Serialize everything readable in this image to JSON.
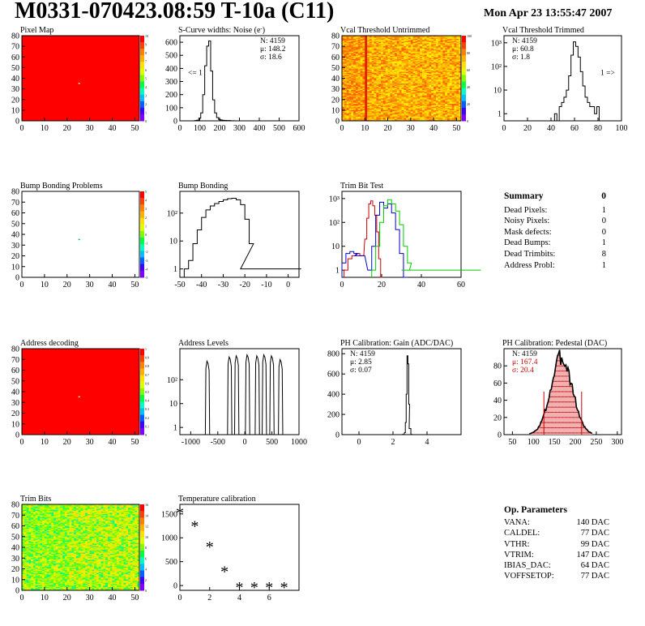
{
  "header": {
    "title": "M0331-070423.08:59 T-10a (C11)",
    "date": "Mon Apr 23 13:55:47 2007"
  },
  "summary": {
    "title": "Summary",
    "total": "0",
    "rows": [
      {
        "label": "Dead Pixels:",
        "value": "1"
      },
      {
        "label": "Noisy Pixels:",
        "value": "0"
      },
      {
        "label": "Mask defects:",
        "value": "0"
      },
      {
        "label": "Dead Bumps:",
        "value": "1"
      },
      {
        "label": "Dead Trimbits:",
        "value": "8"
      },
      {
        "label": "Address Probl:",
        "value": "1"
      }
    ]
  },
  "op_params": {
    "title": "Op. Parameters",
    "rows": [
      {
        "label": "VANA:",
        "value": "140 DAC"
      },
      {
        "label": "CALDEL:",
        "value": "77 DAC"
      },
      {
        "label": "VTHR:",
        "value": "99 DAC"
      },
      {
        "label": "VTRIM:",
        "value": "147 DAC"
      },
      {
        "label": "IBIAS_DAC:",
        "value": "64 DAC"
      },
      {
        "label": "VOFFSETOP:",
        "value": "77 DAC"
      }
    ]
  },
  "colors": {
    "map_red": "#ff0000",
    "map_pixel": "#ffff66",
    "trim_red": "#cc0000",
    "trim_green": "#00cc00",
    "trim_blue": "#0000cc",
    "pedestal_stats": "#cc0000",
    "pedestal_fill": "#f3b0b0"
  },
  "chart_data": [
    {
      "id": "pixel_map",
      "type": "heatmap",
      "title": "Pixel Map",
      "xlim": [
        0,
        52
      ],
      "ylim": [
        0,
        80
      ],
      "xticks": [
        0,
        10,
        20,
        30,
        40,
        50
      ],
      "yticks": [
        0,
        10,
        20,
        30,
        40,
        50,
        60,
        70,
        80
      ],
      "fill": "uniform-max",
      "zlim": [
        0,
        10
      ],
      "zticks": [
        "10",
        "9",
        "8",
        "7",
        "6",
        "5",
        "4",
        "3",
        "2",
        "1",
        "0"
      ],
      "defects": [
        {
          "x": 25,
          "y": 35,
          "value": "low"
        }
      ]
    },
    {
      "id": "scurve_widths",
      "type": "histogram",
      "title": "S-Curve widths: Noise (e",
      "title_sup": "-",
      "title_end": ")",
      "xlim": [
        0,
        600
      ],
      "ylim": [
        0,
        650
      ],
      "xticks": [
        0,
        100,
        200,
        300,
        400,
        500,
        600
      ],
      "yticks": [
        0,
        100,
        200,
        300,
        400,
        500,
        600
      ],
      "stats": [
        "N: 4159",
        "μ: 148.2",
        "σ: 18.6"
      ],
      "annotation": "<= 1",
      "x": [
        70,
        80,
        90,
        100,
        110,
        120,
        130,
        140,
        150,
        160,
        170,
        180,
        190,
        200,
        210,
        220,
        230,
        240,
        250,
        260,
        270,
        280
      ],
      "values": [
        0,
        2,
        5,
        20,
        60,
        200,
        420,
        570,
        610,
        380,
        160,
        60,
        25,
        10,
        6,
        4,
        3,
        2,
        2,
        1,
        1,
        0
      ]
    },
    {
      "id": "vcal_untrimmed",
      "type": "heatmap",
      "title": "Vcal Threshold Untrimmed",
      "xlim": [
        0,
        52
      ],
      "ylim": [
        0,
        80
      ],
      "xticks": [
        0,
        10,
        20,
        30,
        40,
        50
      ],
      "yticks": [
        0,
        10,
        20,
        30,
        40,
        50,
        60,
        70,
        80
      ],
      "fill": "noisy-high",
      "zlim": [
        0,
        100
      ],
      "zticks": [
        "100",
        "80",
        "60",
        "40",
        "20",
        "0"
      ],
      "hot_columns": [
        10
      ]
    },
    {
      "id": "vcal_trimmed",
      "type": "histogram",
      "title": "Vcal Threshold Trimmed",
      "log_y": true,
      "xlim": [
        0,
        100
      ],
      "ylim": [
        0.5,
        2000
      ],
      "xticks": [
        0,
        20,
        40,
        60,
        80,
        100
      ],
      "yticks": [
        1,
        10,
        100,
        1000
      ],
      "ytick_labels": [
        "1",
        "10",
        "10²",
        "10³"
      ],
      "stats": [
        "N: 4159",
        "μ: 60.8",
        "σ:  1.8"
      ],
      "annotation": "1 =>",
      "x": [
        44,
        46,
        48,
        50,
        52,
        54,
        56,
        58,
        60,
        62,
        64,
        66,
        68,
        70,
        72,
        74,
        76,
        78,
        80,
        82
      ],
      "values": [
        1,
        0,
        2,
        3,
        5,
        10,
        40,
        300,
        1100,
        700,
        250,
        60,
        15,
        5,
        3,
        2,
        2,
        1,
        2,
        0
      ]
    },
    {
      "id": "bump_bonding_problems",
      "type": "heatmap",
      "title": "Bump Bonding Problems",
      "xlim": [
        0,
        52
      ],
      "ylim": [
        0,
        80
      ],
      "xticks": [
        0,
        10,
        20,
        30,
        40,
        50
      ],
      "yticks": [
        0,
        10,
        20,
        30,
        40,
        50,
        60,
        70,
        80
      ],
      "fill": "empty",
      "zlim": [
        -5,
        5
      ],
      "zticks": [
        "5",
        "4",
        "3",
        "2",
        "1",
        "0",
        "-1",
        "-2",
        "-3",
        "-4",
        "-5"
      ],
      "defects": [
        {
          "x": 25,
          "y": 35,
          "value": "low"
        }
      ]
    },
    {
      "id": "bump_bonding",
      "type": "histogram",
      "title": "Bump Bonding",
      "log_y": true,
      "xlim": [
        -50,
        5
      ],
      "ylim": [
        0.5,
        600
      ],
      "xticks": [
        -50,
        -40,
        -30,
        -20,
        -10,
        0
      ],
      "yticks": [
        1,
        10,
        100
      ],
      "ytick_labels": [
        "1",
        "10",
        "10²"
      ],
      "x": [
        -47,
        -45,
        -43,
        -41,
        -39,
        -37,
        -35,
        -33,
        -31,
        -29,
        -27,
        -25,
        -23,
        -21,
        -19,
        -17,
        -15,
        -1
      ],
      "values": [
        1,
        2,
        8,
        25,
        70,
        130,
        180,
        220,
        260,
        300,
        330,
        340,
        300,
        200,
        60,
        8,
        1,
        1
      ]
    },
    {
      "id": "trim_bit_test",
      "type": "line",
      "title": "Trim Bit Test",
      "log_y": true,
      "xlim": [
        0,
        60
      ],
      "ylim": [
        0.5,
        2000
      ],
      "xticks": [
        0,
        20,
        40,
        60
      ],
      "yticks": [
        1,
        10,
        100,
        1000
      ],
      "ytick_labels": [
        "1",
        "10",
        "10²",
        "10³"
      ],
      "series": [
        {
          "color": "red",
          "x": [
            2,
            4,
            6,
            8,
            10,
            12,
            13,
            14,
            15,
            16,
            17,
            18,
            19,
            20
          ],
          "values": [
            1,
            3,
            4,
            5,
            4,
            20,
            150,
            600,
            800,
            500,
            200,
            40,
            3,
            0.5
          ]
        },
        {
          "color": "blue",
          "x": [
            1,
            3,
            5,
            7,
            9,
            14,
            16,
            18,
            20,
            22,
            24,
            26,
            28,
            30,
            32
          ],
          "values": [
            2,
            5,
            6,
            5,
            4,
            1,
            10,
            200,
            700,
            400,
            600,
            250,
            50,
            5,
            0.5
          ]
        },
        {
          "color": "green",
          "x": [
            16,
            18,
            20,
            22,
            24,
            26,
            28,
            30,
            32,
            34,
            36,
            40,
            60
          ],
          "values": [
            1,
            10,
            100,
            500,
            900,
            600,
            300,
            80,
            10,
            2,
            1,
            1,
            1
          ]
        }
      ]
    },
    {
      "id": "address_decoding",
      "type": "heatmap",
      "title": "Address decoding",
      "xlim": [
        0,
        52
      ],
      "ylim": [
        0,
        80
      ],
      "xticks": [
        0,
        10,
        20,
        30,
        40,
        50
      ],
      "yticks": [
        0,
        10,
        20,
        30,
        40,
        50,
        60,
        70,
        80
      ],
      "fill": "uniform-max",
      "zlim": [
        0,
        1
      ],
      "zticks": [
        "1",
        "0.9",
        "0.8",
        "0.7",
        "0.6",
        "0.5",
        "0.4",
        "0.3",
        "0.2",
        "0.1",
        "0"
      ],
      "defects": [
        {
          "x": 25,
          "y": 35,
          "value": "low"
        }
      ]
    },
    {
      "id": "address_levels",
      "type": "histogram",
      "title": "Address Levels",
      "log_y": true,
      "xlim": [
        -1200,
        1000
      ],
      "ylim": [
        0.5,
        2000
      ],
      "xticks": [
        -1000,
        -500,
        0,
        500,
        1000
      ],
      "yticks": [
        1,
        10,
        100
      ],
      "ytick_labels": [
        "1",
        "10",
        "10²"
      ],
      "peaks": [
        -690,
        -280,
        -150,
        50,
        230,
        360,
        500,
        660
      ],
      "peak_values": [
        600,
        900,
        1000,
        1100,
        1000,
        1100,
        1000,
        700
      ]
    },
    {
      "id": "ph_gain",
      "type": "histogram",
      "title": "PH Calibration: Gain (ADC/DAC)",
      "xlim": [
        -1,
        6
      ],
      "ylim": [
        0,
        850
      ],
      "xticks": [
        0,
        2,
        4
      ],
      "yticks": [
        0,
        200,
        400,
        600,
        800
      ],
      "stats": [
        "N: 4159",
        "μ: 2.85",
        "σ: 0.07"
      ],
      "x": [
        2.6,
        2.7,
        2.75,
        2.8,
        2.85,
        2.9,
        2.95,
        3.0,
        3.1
      ],
      "values": [
        2,
        20,
        120,
        400,
        780,
        700,
        300,
        60,
        2
      ]
    },
    {
      "id": "ph_pedestal",
      "type": "histogram",
      "title": "PH Calibration: Pedestal (DAC)",
      "xlim": [
        30,
        310
      ],
      "ylim": [
        0,
        100
      ],
      "xticks": [
        50,
        100,
        150,
        200,
        250,
        300
      ],
      "yticks": [
        0,
        20,
        40,
        60,
        80
      ],
      "stats": [
        "N: 4159",
        "μ: 167.4",
        "σ: 20.4"
      ],
      "cut_lines": [
        125,
        215
      ],
      "mean": 167.4,
      "sigma": 20.4,
      "peak": 90
    },
    {
      "id": "trim_bits",
      "type": "heatmap",
      "title": "Trim Bits",
      "xlim": [
        0,
        52
      ],
      "ylim": [
        0,
        80
      ],
      "xticks": [
        0,
        10,
        20,
        30,
        40,
        50
      ],
      "yticks": [
        0,
        10,
        20,
        30,
        40,
        50,
        60,
        70,
        80
      ],
      "fill": "noisy-mid",
      "zlim": [
        0,
        16
      ],
      "zticks": [
        "16",
        "14",
        "12",
        "10",
        "8",
        "6",
        "4",
        "2",
        "0"
      ]
    },
    {
      "id": "temperature_calibration",
      "type": "scatter",
      "title": "Temperature calibration",
      "xlim": [
        0,
        8
      ],
      "ylim": [
        -100,
        1700
      ],
      "xticks": [
        0,
        2,
        4,
        6
      ],
      "yticks": [
        0,
        500,
        1000,
        1500
      ],
      "x": [
        0,
        1,
        2,
        3,
        4,
        5,
        6,
        7
      ],
      "values": [
        1560,
        1280,
        850,
        330,
        0,
        0,
        0,
        0
      ]
    }
  ]
}
